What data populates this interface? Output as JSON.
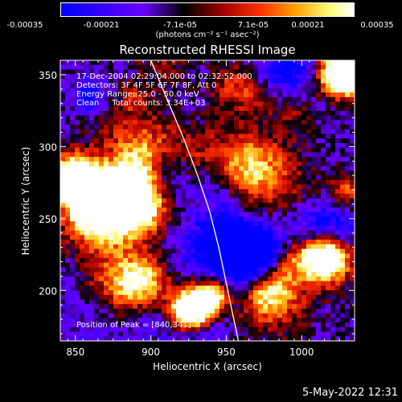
{
  "colorbar": {
    "ticks": [
      "-0.00035",
      "-0.00021",
      "-7.1e-05",
      "7.1e-05",
      "0.00021",
      "0.00035"
    ],
    "units_label": "(photons cm⁻² s⁻¹ asec⁻²)",
    "range": [
      -0.00035,
      0.00035
    ],
    "stops": [
      "#0000ff",
      "#6a00ff",
      "#000000",
      "#a00000",
      "#ff3000",
      "#ffa000",
      "#ffff80",
      "#ffffff"
    ]
  },
  "chart_data": {
    "type": "heatmap",
    "title": "Reconstructed RHESSI Image",
    "xlabel": "Heliocentric X (arcsec)",
    "ylabel": "Heliocentric Y (arcsec)",
    "xlim": [
      840,
      1035
    ],
    "ylim": [
      165,
      360
    ],
    "xticks": [
      850,
      900,
      950,
      1000
    ],
    "yticks": [
      200,
      250,
      300,
      350
    ],
    "annotations": [
      "17-Dec-2004 02:29:04.000 to 02:32:52.000",
      "Detectors: 3F 4F 5F 6F 7F 8F, Att 0",
      "Energy Range: 25.0 - 50.0 keV",
      "Clean     Total counts: 3.34E+03",
      "Position of Peak = [840,341]"
    ],
    "peak_position": [
      840,
      341
    ],
    "limb_curve": [
      [
        900,
        360
      ],
      [
        912,
        330
      ],
      [
        922,
        305
      ],
      [
        931,
        280
      ],
      [
        939,
        255
      ],
      [
        945,
        230
      ],
      [
        950,
        205
      ],
      [
        955,
        180
      ],
      [
        958,
        165
      ]
    ]
  },
  "footer": {
    "timestamp": "5-May-2022 12:31"
  }
}
